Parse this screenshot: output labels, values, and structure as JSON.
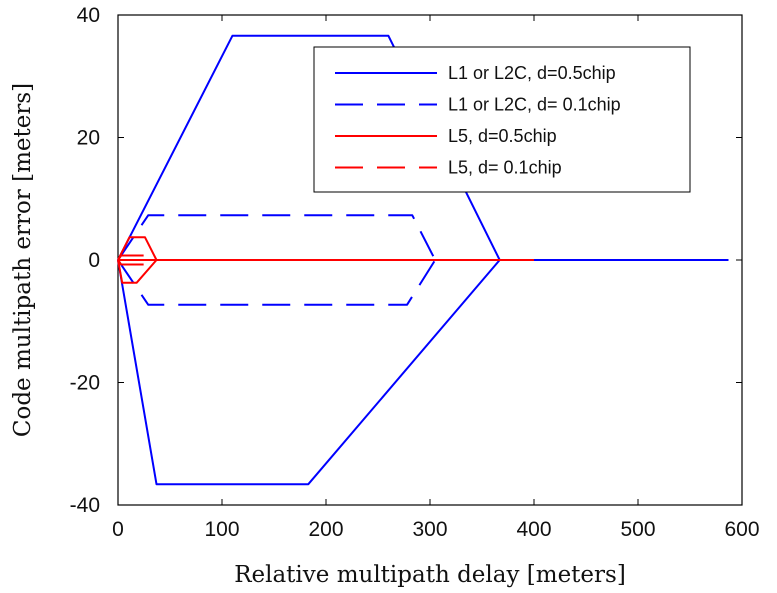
{
  "chart_data": {
    "type": "line",
    "title": "",
    "xlabel": "Relative multipath delay [meters]",
    "ylabel": "Code multipath error [meters]",
    "xlim": [
      0,
      600
    ],
    "ylim": [
      -40,
      40
    ],
    "xticks": [
      0,
      100,
      200,
      300,
      400,
      500,
      600
    ],
    "yticks": [
      -40,
      -20,
      0,
      20,
      40
    ],
    "grid": false,
    "legend_position": "top-right",
    "series": [
      {
        "name": "L1 or L2C, d=0.5chip",
        "color": "#0000ff",
        "dash": "solid",
        "segments": [
          [
            [
              0,
              0
            ],
            [
              110,
              36.6
            ],
            [
              260,
              36.6
            ],
            [
              367,
              0
            ]
          ],
          [
            [
              0,
              0
            ],
            [
              37,
              -36.6
            ],
            [
              183,
              -36.6
            ],
            [
              367,
              0
            ]
          ],
          [
            [
              367,
              0
            ],
            [
              587,
              0
            ]
          ]
        ]
      },
      {
        "name": "L1 or L2C, d= 0.1chip",
        "color": "#0000ff",
        "dash": "dashed",
        "segments": [
          [
            [
              0,
              0
            ],
            [
              29,
              7.3
            ],
            [
              283,
              7.3
            ],
            [
              305,
              0
            ]
          ],
          [
            [
              0,
              0
            ],
            [
              29,
              -7.3
            ],
            [
              278,
              -7.3
            ],
            [
              305,
              0
            ]
          ],
          [
            [
              0,
              0
            ],
            [
              400,
              0
            ]
          ]
        ]
      },
      {
        "name": "L5, d=0.5chip",
        "color": "#ff0000",
        "dash": "solid",
        "segments": [
          [
            [
              0,
              0
            ],
            [
              37,
              0
            ]
          ],
          [
            [
              0,
              0
            ],
            [
              11,
              3.7
            ],
            [
              26,
              3.7
            ],
            [
              37,
              0
            ]
          ],
          [
            [
              0,
              0
            ],
            [
              4,
              -3.7
            ],
            [
              18,
              -3.7
            ],
            [
              37,
              0
            ]
          ],
          [
            [
              37,
              0
            ],
            [
              400,
              0
            ]
          ]
        ]
      },
      {
        "name": "L5, d= 0.1chip",
        "color": "#ff0000",
        "dash": "dashed",
        "segments": [
          [
            [
              0,
              0
            ],
            [
              3,
              0.73
            ],
            [
              28,
              0.73
            ],
            [
              31,
              0
            ]
          ],
          [
            [
              0,
              0
            ],
            [
              3,
              -0.73
            ],
            [
              28,
              -0.73
            ],
            [
              31,
              0
            ]
          ],
          [
            [
              0,
              0
            ],
            [
              400,
              0
            ]
          ]
        ]
      }
    ]
  }
}
